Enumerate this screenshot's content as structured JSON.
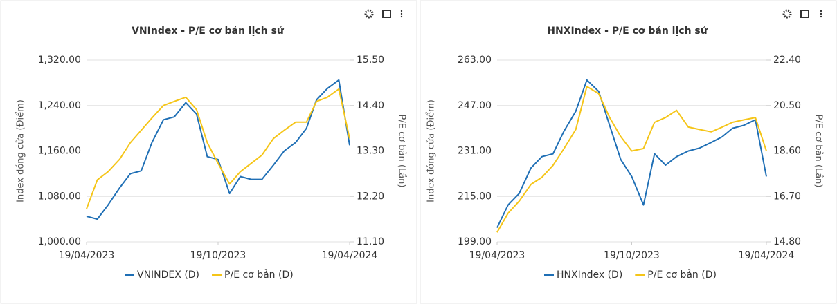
{
  "chart_data": [
    {
      "type": "line",
      "title": "VNIndex - P/E cơ bản lịch sử",
      "y_label": "Index đóng cửa (Điểm)",
      "y2_label": "P/E cơ bản (Lần)",
      "x": [
        "19/04/2023",
        "04/05/2023",
        "19/05/2023",
        "04/06/2023",
        "19/06/2023",
        "04/07/2023",
        "19/07/2023",
        "04/08/2023",
        "19/08/2023",
        "04/09/2023",
        "19/09/2023",
        "04/10/2023",
        "19/10/2023",
        "04/11/2023",
        "19/11/2023",
        "04/12/2023",
        "19/12/2023",
        "04/01/2024",
        "19/01/2024",
        "04/02/2024",
        "19/02/2024",
        "04/03/2024",
        "19/03/2024",
        "04/04/2024",
        "19/04/2024"
      ],
      "xticks": [
        "19/04/2023",
        "19/10/2023",
        "19/04/2024"
      ],
      "series": [
        {
          "name": "VNINDEX (D)",
          "color": "#1f6fb5",
          "values": [
            1045,
            1040,
            1065,
            1095,
            1120,
            1125,
            1175,
            1215,
            1220,
            1245,
            1225,
            1150,
            1145,
            1085,
            1115,
            1110,
            1110,
            1135,
            1160,
            1175,
            1200,
            1250,
            1270,
            1285,
            1170
          ]
        },
        {
          "name": "P/E cơ bản (D)",
          "color": "#f5c518",
          "axis": "y2",
          "values": [
            11.9,
            12.6,
            12.8,
            13.1,
            13.5,
            13.8,
            14.1,
            14.4,
            14.5,
            14.6,
            14.3,
            13.5,
            13.0,
            12.5,
            12.8,
            13.0,
            13.2,
            13.6,
            13.8,
            14.0,
            14.0,
            14.5,
            14.6,
            14.8,
            13.6
          ]
        }
      ],
      "ylim": [
        1000,
        1320
      ],
      "yticks": [
        {
          "value": 1000,
          "label": "1,000.00"
        },
        {
          "value": 1080,
          "label": "1,080.00"
        },
        {
          "value": 1160,
          "label": "1,160.00"
        },
        {
          "value": 1240,
          "label": "1,240.00"
        },
        {
          "value": 1320,
          "label": "1,320.00"
        }
      ],
      "y2lim": [
        11.1,
        15.5
      ],
      "y2ticks": [
        {
          "value": 11.1,
          "label": "11.10"
        },
        {
          "value": 12.2,
          "label": "12.20"
        },
        {
          "value": 13.3,
          "label": "13.30"
        },
        {
          "value": 14.4,
          "label": "14.40"
        },
        {
          "value": 15.5,
          "label": "15.50"
        }
      ],
      "grid": true,
      "legend": "bottom"
    },
    {
      "type": "line",
      "title": "HNXIndex - P/E cơ bản lịch sử",
      "y_label": "Index đóng cửa (Điểm)",
      "y2_label": "P/E cơ bản (Lần)",
      "x": [
        "19/04/2023",
        "04/05/2023",
        "19/05/2023",
        "04/06/2023",
        "19/06/2023",
        "04/07/2023",
        "19/07/2023",
        "04/08/2023",
        "19/08/2023",
        "04/09/2023",
        "19/09/2023",
        "04/10/2023",
        "19/10/2023",
        "04/11/2023",
        "19/11/2023",
        "04/12/2023",
        "19/12/2023",
        "04/01/2024",
        "19/01/2024",
        "04/02/2024",
        "19/02/2024",
        "04/03/2024",
        "19/03/2024",
        "04/04/2024",
        "19/04/2024"
      ],
      "xticks": [
        "19/04/2023",
        "19/10/2023",
        "19/04/2024"
      ],
      "series": [
        {
          "name": "HNXIndex (D)",
          "color": "#1f6fb5",
          "values": [
            204,
            212,
            216,
            225,
            229,
            230,
            238,
            245,
            256,
            252,
            240,
            228,
            222,
            212,
            230,
            226,
            229,
            231,
            232,
            234,
            236,
            239,
            240,
            242,
            222
          ]
        },
        {
          "name": "P/E cơ bản (D)",
          "color": "#f5c518",
          "axis": "y2",
          "values": [
            15.2,
            16.0,
            16.5,
            17.2,
            17.5,
            18.0,
            18.7,
            19.5,
            21.3,
            21.0,
            20.0,
            19.2,
            18.6,
            18.7,
            19.8,
            20.0,
            20.3,
            19.6,
            19.5,
            19.4,
            19.6,
            19.8,
            19.9,
            20.0,
            18.6
          ]
        }
      ],
      "ylim": [
        199,
        263
      ],
      "yticks": [
        {
          "value": 199,
          "label": "199.00"
        },
        {
          "value": 215,
          "label": "215.00"
        },
        {
          "value": 231,
          "label": "231.00"
        },
        {
          "value": 247,
          "label": "247.00"
        },
        {
          "value": 263,
          "label": "263.00"
        }
      ],
      "y2lim": [
        14.8,
        22.4
      ],
      "y2ticks": [
        {
          "value": 14.8,
          "label": "14.80"
        },
        {
          "value": 16.7,
          "label": "16.70"
        },
        {
          "value": 18.6,
          "label": "18.60"
        },
        {
          "value": 20.5,
          "label": "20.50"
        },
        {
          "value": 22.4,
          "label": "22.40"
        }
      ],
      "grid": true,
      "legend": "bottom"
    }
  ]
}
